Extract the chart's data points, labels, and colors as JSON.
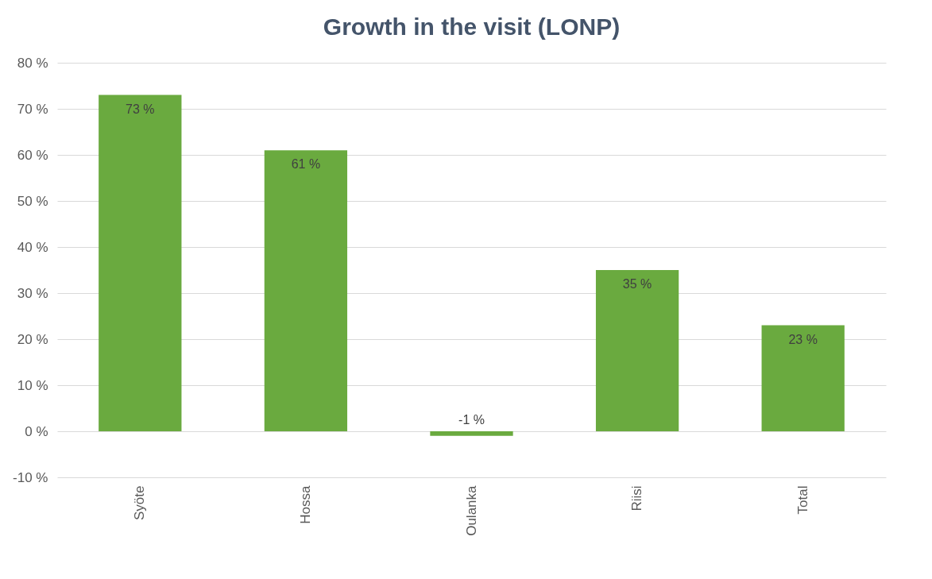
{
  "chart_data": {
    "type": "bar",
    "title": "Growth in the visit (LONP)",
    "categories": [
      "Syöte",
      "Hossa",
      "Oulanka",
      "Riisi",
      "Total"
    ],
    "values": [
      73,
      61,
      -1,
      35,
      23
    ],
    "value_labels": [
      "73 %",
      "61 %",
      "-1 %",
      "35 %",
      "23 %"
    ],
    "color": "#6aaa3f",
    "ylim": [
      -10,
      80
    ],
    "yticks": [
      {
        "value": -10,
        "label": "-10 %"
      },
      {
        "value": 0,
        "label": "0 %"
      },
      {
        "value": 10,
        "label": "10 %"
      },
      {
        "value": 20,
        "label": "20 %"
      },
      {
        "value": 30,
        "label": "30 %"
      },
      {
        "value": 40,
        "label": "40 %"
      },
      {
        "value": 50,
        "label": "50 %"
      },
      {
        "value": 60,
        "label": "60 %"
      },
      {
        "value": 70,
        "label": "70 %"
      },
      {
        "value": 80,
        "label": "80 %"
      }
    ],
    "grid": "y"
  }
}
